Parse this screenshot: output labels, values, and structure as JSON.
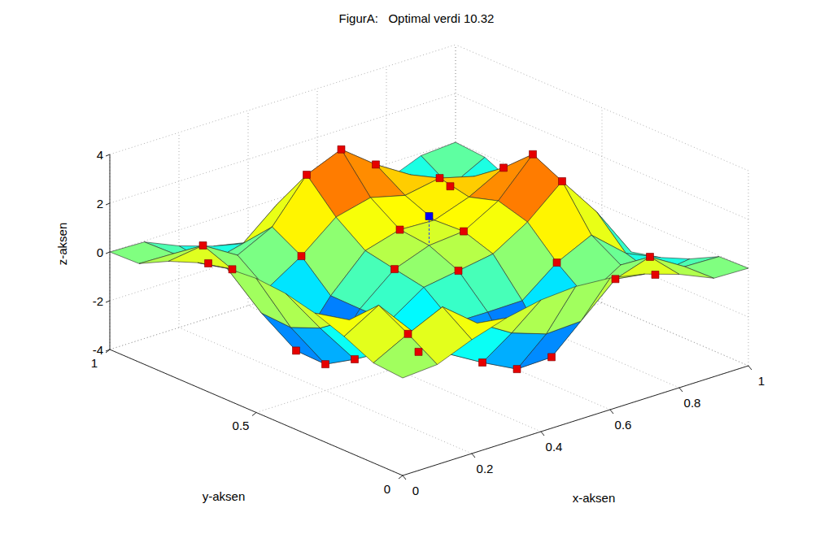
{
  "chart_data": {
    "type": "surface",
    "title": "FigurA:   Optimal verdi 10.32",
    "x_label": "x-aksen",
    "y_label": "y-aksen",
    "z_label": "z-aksen",
    "x": [
      0,
      0.1,
      0.2,
      0.3,
      0.4,
      0.5,
      0.6,
      0.7,
      0.8,
      0.9,
      1
    ],
    "y": [
      0,
      0.1,
      0.2,
      0.3,
      0.4,
      0.5,
      0.6,
      0.7,
      0.8,
      0.9,
      1
    ],
    "z": [
      [
        0,
        0.1,
        0.67,
        1.11,
        1.4,
        1.5,
        1.4,
        1.11,
        0.65,
        0.04,
        0
      ],
      [
        0.1,
        0.84,
        1.5,
        0.38,
        -0.47,
        -0.96,
        -0.89,
        0.39,
        0.85,
        0,
        -0.04
      ],
      [
        0.67,
        1.5,
        -0.05,
        -1.39,
        -2.2,
        -2.92,
        -2.88,
        -0.87,
        0,
        -0.85,
        -0.65
      ],
      [
        1.11,
        0.38,
        -1.39,
        -1.83,
        -1.09,
        -1.1,
        -1.08,
        0.03,
        0.71,
        -0.49,
        -1.11
      ],
      [
        1.4,
        -0.47,
        -2.2,
        -1.09,
        -0.15,
        0.08,
        0.32,
        1.18,
        2.4,
        0.69,
        -1.4
      ],
      [
        1.5,
        -0.96,
        -2.92,
        -1.1,
        0.08,
        0.6,
        0.73,
        1.53,
        2.99,
        0.99,
        -1.5
      ],
      [
        1.4,
        -0.89,
        -2.88,
        -1.08,
        0.32,
        0.73,
        0.67,
        1.17,
        1.92,
        0.37,
        -1.4
      ],
      [
        1.11,
        0.39,
        -0.87,
        0.03,
        1.18,
        1.53,
        1.17,
        1.43,
        1.05,
        -0.49,
        -1.11
      ],
      [
        0.65,
        0.85,
        0,
        0.71,
        2.4,
        2.99,
        1.92,
        1.05,
        -0.15,
        -1.5,
        -0.67
      ],
      [
        0.04,
        0,
        -0.85,
        -0.49,
        0.69,
        0.99,
        0.37,
        -0.49,
        -1.5,
        -0.84,
        -0.1
      ],
      [
        0,
        -0.04,
        -0.65,
        -1.11,
        -1.4,
        -1.5,
        -1.4,
        -1.11,
        -0.67,
        -0.1,
        0
      ]
    ],
    "xlim": [
      0,
      1
    ],
    "ylim": [
      0,
      1
    ],
    "zlim": [
      -4,
      4
    ],
    "xticks": [
      0,
      0.2,
      0.4,
      0.6,
      0.8,
      1
    ],
    "yticks": [
      0,
      0.5,
      1
    ],
    "zticks": [
      -4,
      -2,
      0,
      2,
      4
    ],
    "grid": true,
    "points": [
      [
        0.5,
        0.8,
        2.99
      ],
      [
        0.6,
        0.8,
        1.92
      ],
      [
        0.4,
        0.8,
        2.4
      ],
      [
        0.7,
        0.7,
        1.43
      ],
      [
        0.8,
        0.6,
        1.92
      ],
      [
        0.8,
        0.5,
        2.99
      ],
      [
        0.8,
        0.4,
        2.4
      ],
      [
        0.7,
        0.3,
        0.03
      ],
      [
        0.6,
        0.2,
        -2.88
      ],
      [
        0.5,
        0.2,
        -2.92
      ],
      [
        0.4,
        0.2,
        -2.2
      ],
      [
        0.3,
        0.3,
        -1.83
      ],
      [
        0.2,
        0.4,
        -2.2
      ],
      [
        0.2,
        0.5,
        -2.92
      ],
      [
        0.2,
        0.6,
        -2.88
      ],
      [
        0.3,
        0.7,
        0.03
      ],
      [
        0.5,
        0.6,
        0.73
      ],
      [
        0.6,
        0.5,
        0.73
      ],
      [
        0.4,
        0.5,
        0.08
      ],
      [
        0.5,
        0.4,
        0.08
      ],
      [
        0.1,
        0.8,
        0.85
      ],
      [
        0.1,
        0.7,
        0.39
      ],
      [
        0.2,
        0.9,
        -0.85
      ],
      [
        0.8,
        0.1,
        0.85
      ],
      [
        0.7,
        0.1,
        0.39
      ],
      [
        0.9,
        0.2,
        -0.85
      ],
      [
        0.9,
        0.9,
        -0.84
      ],
      [
        0.1,
        0.1,
        0.84
      ]
    ],
    "optimum": [
      0.5,
      0.5,
      1.8
    ]
  }
}
